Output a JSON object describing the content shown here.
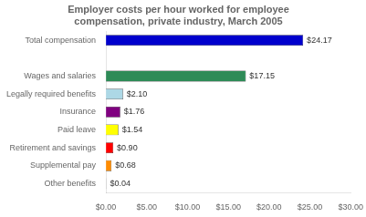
{
  "chart_data": {
    "type": "bar",
    "orientation": "horizontal",
    "title": "Employer costs per hour worked for employee\ncompensation, private industry, March 2005",
    "categories": [
      "Other benefits",
      "Supplemental pay",
      "Retirement and savings",
      "Paid leave",
      "Insurance",
      "Legally required benefits",
      "Wages and salaries",
      null,
      "Total compensation"
    ],
    "values": [
      0.04,
      0.68,
      0.9,
      1.54,
      1.76,
      2.1,
      17.15,
      null,
      24.17
    ],
    "value_labels": [
      "$0.04",
      "$0.68",
      "$0.90",
      "$1.54",
      "$1.76",
      "$2.10",
      "$17.15",
      null,
      "$24.17"
    ],
    "data_labels": true,
    "colors": [
      "#c0c0c0",
      "#ff8c00",
      "#ff0000",
      "#ffff00",
      "#800080",
      "#add8e6",
      "#2e8b57",
      "#ffffff",
      "#0000cd"
    ],
    "xlim": [
      0,
      30
    ],
    "xticks": [
      {
        "value": 0,
        "label": "$0.00"
      },
      {
        "value": 5,
        "label": "$5.00"
      },
      {
        "value": 10,
        "label": "$10.00"
      },
      {
        "value": 15,
        "label": "$15.00"
      },
      {
        "value": 20,
        "label": "$20.00"
      },
      {
        "value": 25,
        "label": "$25.00"
      },
      {
        "value": 30,
        "label": "$30.00"
      }
    ],
    "grid": false
  }
}
